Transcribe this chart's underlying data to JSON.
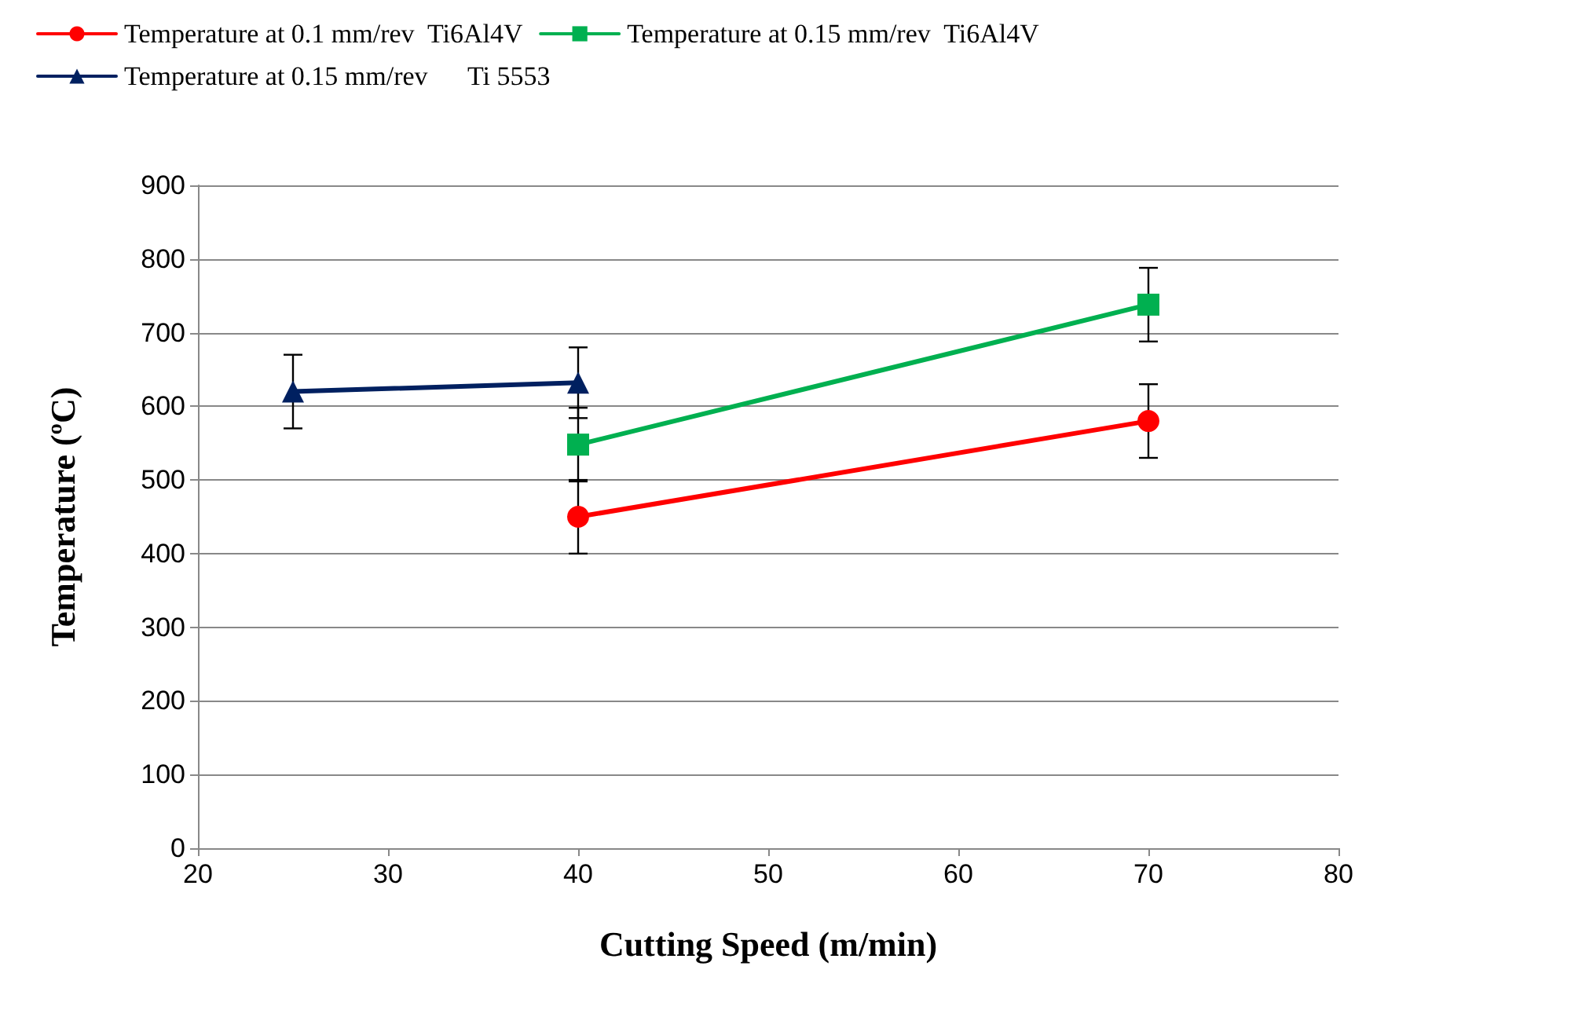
{
  "chart_data": {
    "type": "line",
    "xlabel": "Cutting Speed (m/min)",
    "ylabel": "Temperature (ºC)",
    "xlim": [
      20,
      80
    ],
    "xticks": [
      20,
      30,
      40,
      50,
      60,
      70,
      80
    ],
    "ylim": [
      0,
      900
    ],
    "yticks": [
      0,
      100,
      200,
      300,
      400,
      500,
      600,
      700,
      800,
      900
    ],
    "grid": "y",
    "legend": "top",
    "line_style": "solid",
    "series": [
      {
        "name": "Temperature at 0.1 mm/rev  Ti6Al4V",
        "color": "#ff0000",
        "marker": "circle",
        "x": [
          40,
          70
        ],
        "values": [
          450,
          580
        ],
        "errors": [
          50,
          50
        ]
      },
      {
        "name": "Temperature at 0.15 mm/rev  Ti6Al4V",
        "color": "#00b050",
        "marker": "square",
        "x": [
          40,
          70
        ],
        "values": [
          548,
          738
        ],
        "errors": [
          50,
          50
        ]
      },
      {
        "name": "Temperature at 0.15 mm/rev      Ti 5553",
        "color": "#002060",
        "marker": "triangle",
        "x": [
          25,
          40
        ],
        "values": [
          620,
          632
        ],
        "errors": [
          50,
          48
        ]
      }
    ]
  }
}
